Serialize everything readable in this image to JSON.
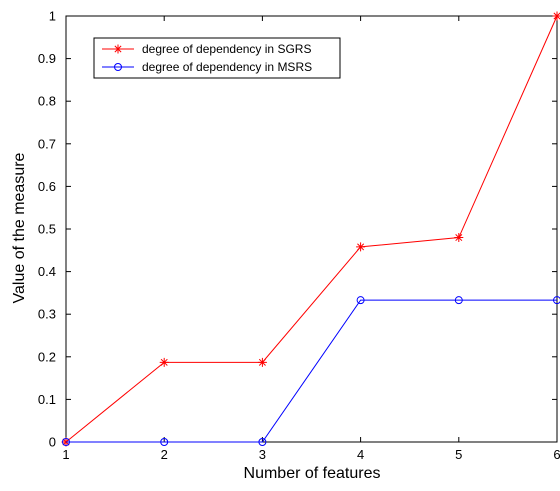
{
  "chart_data": {
    "type": "line",
    "xlabel": "Number of features",
    "ylabel": "Value of the measure",
    "x": [
      1,
      2,
      3,
      4,
      5,
      6
    ],
    "xlim": [
      1,
      6
    ],
    "ylim": [
      0,
      1
    ],
    "x_ticks": [
      "1",
      "2",
      "3",
      "4",
      "5",
      "6"
    ],
    "y_ticks": [
      "0",
      "0.1",
      "0.2",
      "0.3",
      "0.4",
      "0.5",
      "0.6",
      "0.7",
      "0.8",
      "0.9",
      "1"
    ],
    "grid": false,
    "legend_position": "top-left",
    "series": [
      {
        "name": "degree of dependency in SGRS",
        "color": "#ff0000",
        "marker": "asterisk",
        "values": [
          0,
          0.187,
          0.187,
          0.458,
          0.48,
          1.0
        ]
      },
      {
        "name": "degree of dependency in MSRS",
        "color": "#0000ff",
        "marker": "circle",
        "values": [
          0,
          0,
          0,
          0.333,
          0.333,
          0.333
        ]
      }
    ]
  }
}
